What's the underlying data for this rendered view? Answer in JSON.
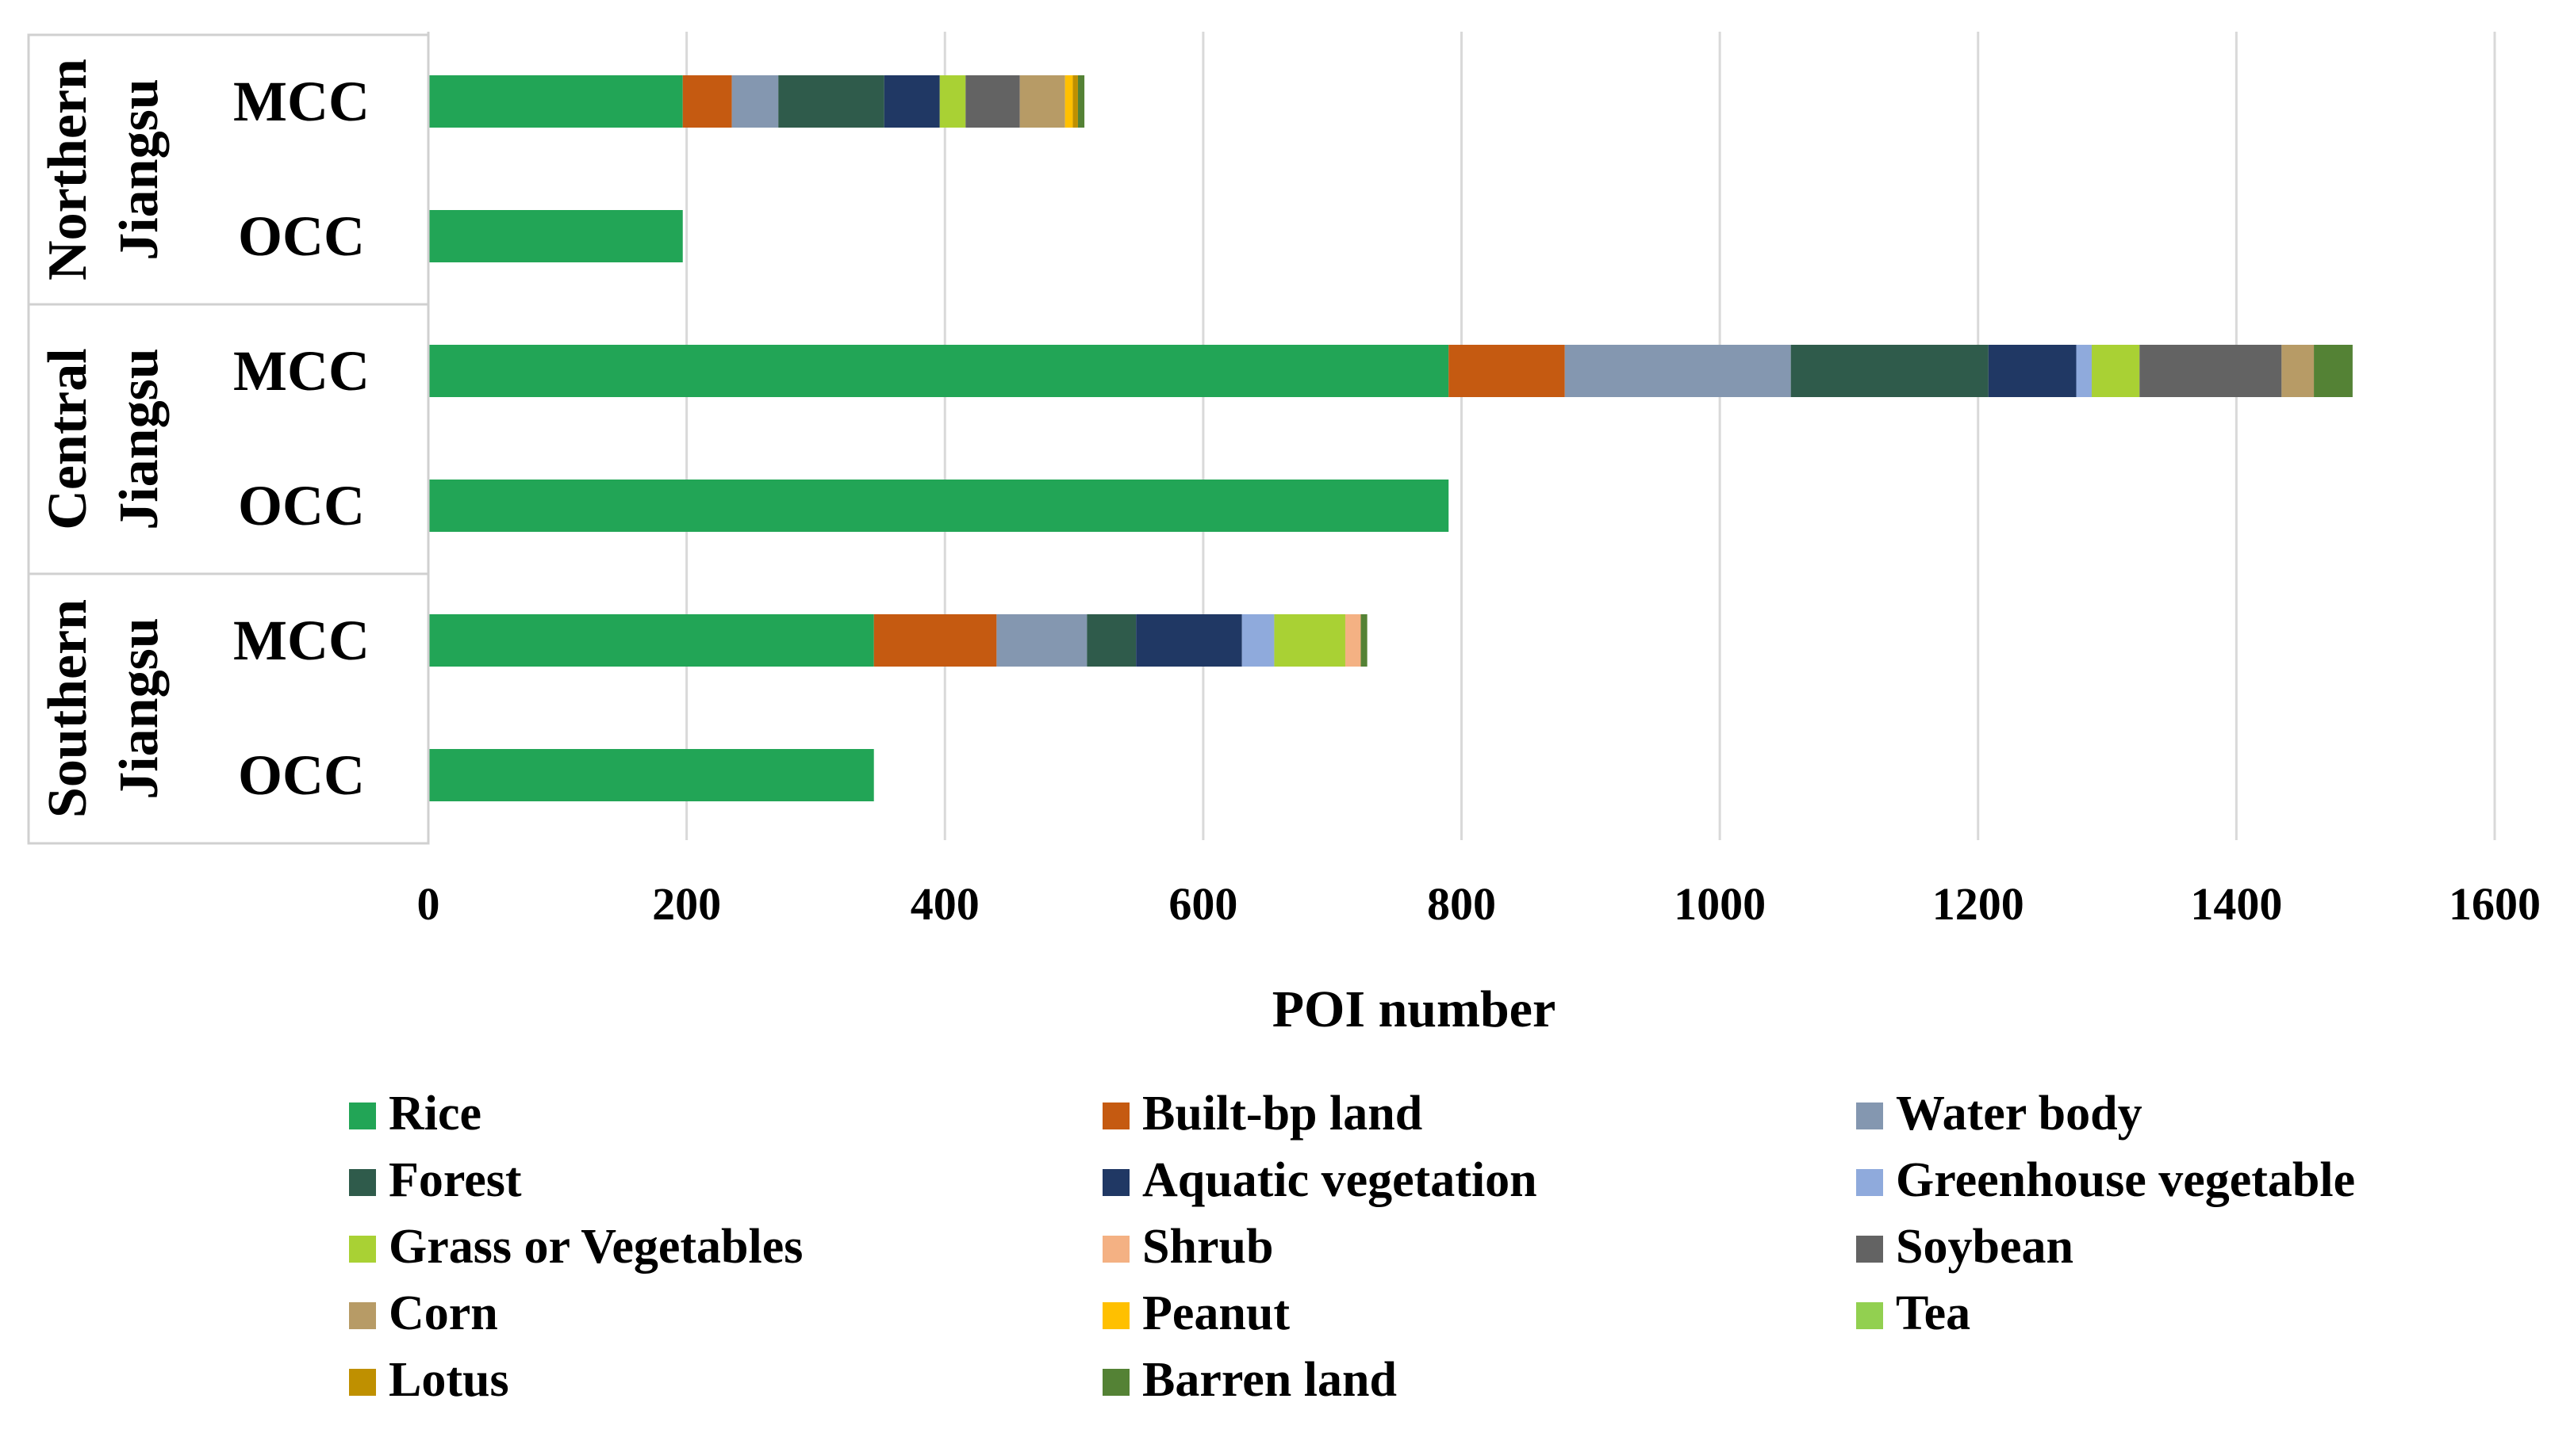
{
  "chart_data": {
    "type": "bar",
    "orientation": "horizontal",
    "stacked": true,
    "title": "",
    "xlabel": "POI number",
    "ylabel": "",
    "xlim": [
      0,
      1600
    ],
    "xticks": [
      0,
      200,
      400,
      600,
      800,
      1000,
      1200,
      1400,
      1600
    ],
    "grid": true,
    "legend_position": "bottom",
    "classes": [
      {
        "name": "Rice",
        "color": "#22a556"
      },
      {
        "name": "Built-bp land",
        "color": "#c55a11"
      },
      {
        "name": "Water body",
        "color": "#8497b0"
      },
      {
        "name": "Forest",
        "color": "#2f5b4b"
      },
      {
        "name": "Aquatic vegetation",
        "color": "#203864"
      },
      {
        "name": "Greenhouse vegetable",
        "color": "#8faadc"
      },
      {
        "name": "Grass or Vegetables",
        "color": "#a9d134"
      },
      {
        "name": "Shrub",
        "color": "#f4b183"
      },
      {
        "name": "Soybean",
        "color": "#636363"
      },
      {
        "name": "Corn",
        "color": "#b79b66"
      },
      {
        "name": "Peanut",
        "color": "#ffc000"
      },
      {
        "name": "Tea",
        "color": "#92d050"
      },
      {
        "name": "Lotus",
        "color": "#bf9000"
      },
      {
        "name": "Barren land",
        "color": "#548235"
      }
    ],
    "groups": [
      {
        "region_line1": "Northern",
        "region_line2": "Jiangsu",
        "bars": [
          {
            "label": "MCC",
            "values": [
              197,
              38,
              36,
              82,
              43,
              0,
              20,
              0,
              42,
              35,
              6,
              0,
              4,
              5
            ]
          },
          {
            "label": "OCC",
            "values": [
              197,
              0,
              0,
              0,
              0,
              0,
              0,
              0,
              0,
              0,
              0,
              0,
              0,
              0
            ]
          }
        ]
      },
      {
        "region_line1": "Central",
        "region_line2": "Jiangsu",
        "bars": [
          {
            "label": "MCC",
            "values": [
              790,
              90,
              175,
              153,
              68,
              12,
              37,
              0,
              110,
              25,
              0,
              0,
              0,
              30
            ]
          },
          {
            "label": "OCC",
            "values": [
              790,
              0,
              0,
              0,
              0,
              0,
              0,
              0,
              0,
              0,
              0,
              0,
              0,
              0
            ]
          }
        ]
      },
      {
        "region_line1": "Southern",
        "region_line2": "Jiangsu",
        "bars": [
          {
            "label": "MCC",
            "values": [
              345,
              95,
              70,
              38,
              82,
              25,
              55,
              12,
              0,
              0,
              0,
              0,
              0,
              5
            ]
          },
          {
            "label": "OCC",
            "values": [
              345,
              0,
              0,
              0,
              0,
              0,
              0,
              0,
              0,
              0,
              0,
              0,
              0,
              0
            ]
          }
        ]
      }
    ]
  }
}
